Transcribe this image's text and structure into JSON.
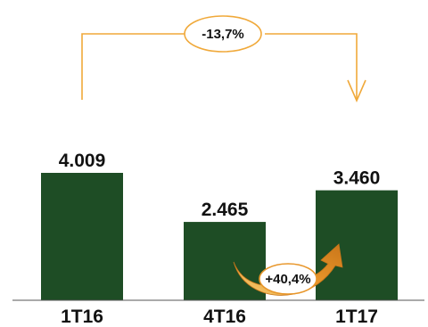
{
  "chart_data": {
    "type": "bar",
    "categories": [
      "1T16",
      "4T16",
      "1T17"
    ],
    "values": [
      4009,
      2465,
      3460
    ],
    "value_labels": [
      "4.009",
      "2.465",
      "3.460"
    ],
    "title": "",
    "xlabel": "",
    "ylabel": "",
    "ylim": [
      0,
      4600
    ],
    "grid": false,
    "legend": "none",
    "annotations": [
      {
        "text": "-13,7%",
        "from": "1T16",
        "to": "1T17",
        "style": "bracket-arrow"
      },
      {
        "text": "+40,4%",
        "from": "4T16",
        "to": "1T17",
        "style": "curved-arrow"
      }
    ]
  },
  "colors": {
    "bar": "#1e4d25",
    "bracket": "#f0a93a",
    "curved_arrow": "#e8962a",
    "axis": "#555555"
  },
  "icons": {
    "bracket_arrow": "arrow-down-icon",
    "curved_arrow": "curved-arrow-up-icon"
  }
}
